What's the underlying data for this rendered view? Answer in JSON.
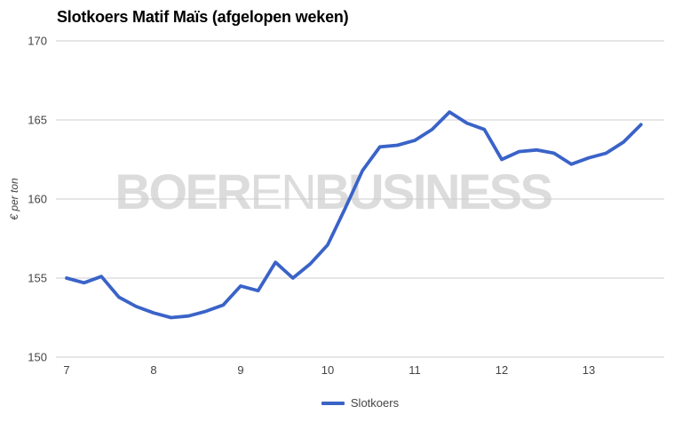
{
  "title": "Slotkoers Matif Maïs (afgelopen weken)",
  "watermark": {
    "bold_left": "BOER",
    "light": "EN",
    "bold_right": "BUSINESS"
  },
  "legend": {
    "items": [
      {
        "label": "Slotkoers",
        "color": "#3A63C8"
      }
    ]
  },
  "colors": {
    "line": "#3A63C8",
    "grid": "#cccccc",
    "tick_text": "#444444",
    "title_text": "#000000",
    "watermark": "#dcdcdc"
  },
  "chart_data": {
    "type": "line",
    "title": "Slotkoers Matif Maïs (afgelopen weken)",
    "xlabel": "",
    "ylabel": "€ per ton",
    "x_ticks": [
      7,
      8,
      9,
      10,
      11,
      12,
      13
    ],
    "y_ticks": [
      150,
      155,
      160,
      165,
      170
    ],
    "xlim": [
      6.88,
      13.87
    ],
    "ylim": [
      150,
      170
    ],
    "grid": true,
    "legend_position": "bottom",
    "series": [
      {
        "name": "Slotkoers",
        "x": [
          7.0,
          7.2,
          7.4,
          7.6,
          7.8,
          8.0,
          8.2,
          8.4,
          8.6,
          8.8,
          9.0,
          9.2,
          9.4,
          9.6,
          9.8,
          10.0,
          10.2,
          10.4,
          10.6,
          10.8,
          11.0,
          11.2,
          11.4,
          11.6,
          11.8,
          12.0,
          12.2,
          12.4,
          12.6,
          12.8,
          13.0,
          13.2,
          13.4,
          13.6
        ],
        "values": [
          155.0,
          154.7,
          155.1,
          153.8,
          153.2,
          152.8,
          152.5,
          152.6,
          152.9,
          153.3,
          154.5,
          154.2,
          156.0,
          155.0,
          155.9,
          157.1,
          159.4,
          161.8,
          163.3,
          163.4,
          163.7,
          164.4,
          165.5,
          164.8,
          164.4,
          162.5,
          163.0,
          163.1,
          162.9,
          162.2,
          162.6,
          162.9,
          163.6,
          164.7
        ]
      }
    ]
  }
}
